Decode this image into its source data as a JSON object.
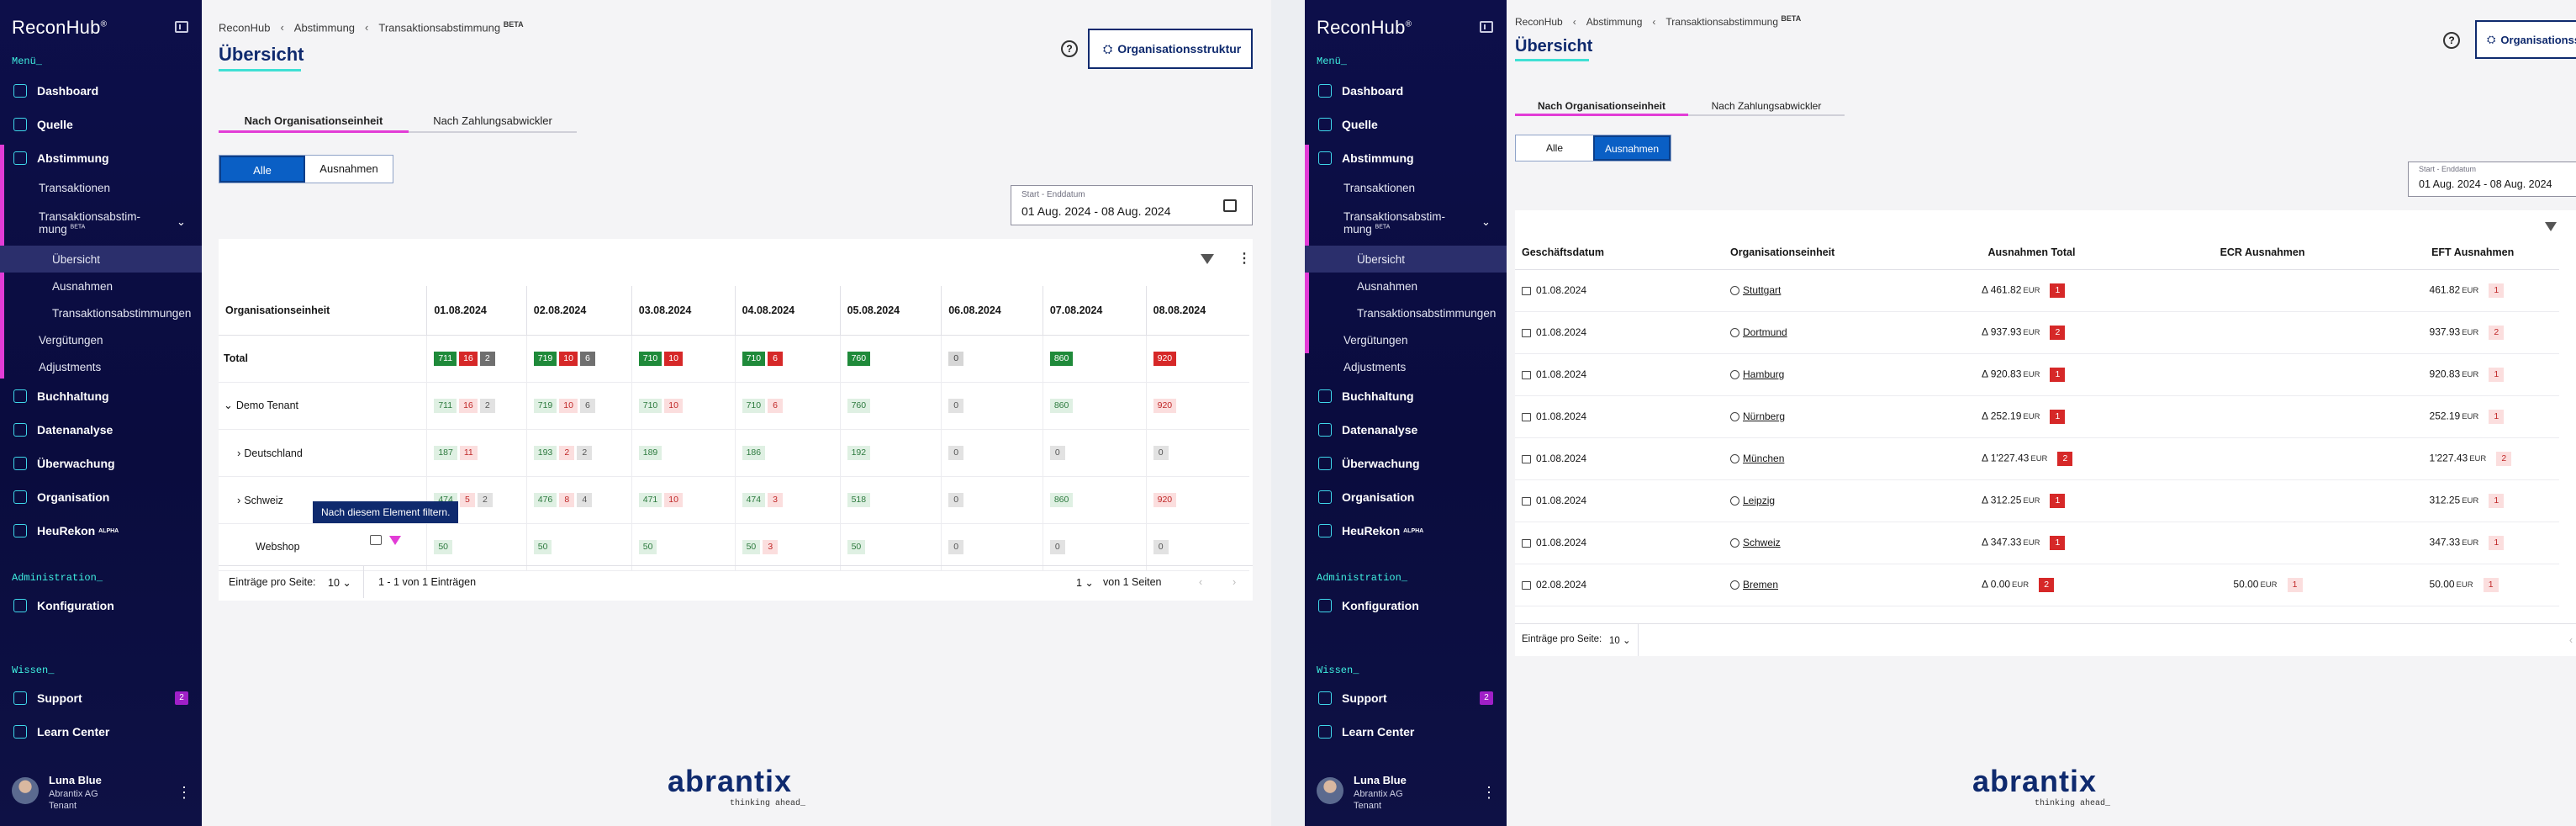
{
  "brand": "ReconHub",
  "brand_mark": "®",
  "sidebar": {
    "section_menu": "Menü_",
    "section_admin": "Administration_",
    "section_wissen": "Wissen_",
    "items": {
      "dashboard": "Dashboard",
      "quelle": "Quelle",
      "abstimmung": "Abstimmung",
      "transaktionen": "Transaktionen",
      "transaktionsabstimmung": "Transaktionsabstim-",
      "transaktionsabstimmung2": "mung",
      "beta": "BETA",
      "uebersicht": "Übersicht",
      "ausnahmen": "Ausnahmen",
      "transaktionsabstimmungen": "Transaktionsabstimmungen",
      "verguetungen": "Vergütungen",
      "adjustments": "Adjustments",
      "buchhaltung": "Buchhaltung",
      "datenanalyse": "Datenanalyse",
      "ueberwachung": "Überwachung",
      "organisation": "Organisation",
      "heurekon": "HeuRekon",
      "alpha": "ALPHA",
      "konfiguration": "Konfiguration",
      "support": "Support",
      "support_badge": "2",
      "learn": "Learn Center"
    },
    "user": {
      "name": "Luna Blue",
      "company": "Abrantix AG",
      "role": "Tenant",
      "menu": "⋮"
    }
  },
  "breadcrumb": {
    "b1": "ReconHub",
    "b2": "Abstimmung",
    "b3": "Transaktionsabstimmung",
    "b3_tag": "BETA",
    "sep": "‹"
  },
  "page_title": "Übersicht",
  "help": "?",
  "org_button": "Organisationsstruktur",
  "tabs": {
    "org": "Nach Organisationseinheit",
    "pay": "Nach Zahlungsabwickler"
  },
  "segment": {
    "all": "Alle",
    "exc": "Ausnahmen"
  },
  "date": {
    "label": "Start - Enddatum",
    "value": "01 Aug. 2024 - 08 Aug. 2024"
  },
  "view1": {
    "col_header": "Organisationseinheit",
    "dates": [
      "01.08.2024",
      "02.08.2024",
      "03.08.2024",
      "04.08.2024",
      "05.08.2024",
      "06.08.2024",
      "07.08.2024",
      "08.08.2024"
    ],
    "rows": [
      {
        "label": "Total",
        "bold": true,
        "exp": "",
        "cells": [
          [
            [
              "711",
              "g"
            ],
            [
              "16",
              "r"
            ],
            [
              "2",
              "n"
            ]
          ],
          [
            [
              "719",
              "g"
            ],
            [
              "10",
              "r"
            ],
            [
              "6",
              "n"
            ]
          ],
          [
            [
              "710",
              "g"
            ],
            [
              "10",
              "r"
            ]
          ],
          [
            [
              "710",
              "g"
            ],
            [
              "6",
              "r"
            ]
          ],
          [
            [
              "760",
              "g"
            ]
          ],
          [
            [
              "0",
              "z"
            ]
          ],
          [
            [
              "860",
              "g"
            ]
          ],
          [
            [
              "920",
              "r"
            ]
          ]
        ]
      },
      {
        "label": "Demo Tenant",
        "exp": "⌄",
        "cells": [
          [
            [
              "711",
              "gl"
            ],
            [
              "16",
              "rl"
            ],
            [
              "2",
              "nl"
            ]
          ],
          [
            [
              "719",
              "gl"
            ],
            [
              "10",
              "rl"
            ],
            [
              "6",
              "nl"
            ]
          ],
          [
            [
              "710",
              "gl"
            ],
            [
              "10",
              "rl"
            ]
          ],
          [
            [
              "710",
              "gl"
            ],
            [
              "6",
              "rl"
            ]
          ],
          [
            [
              "760",
              "gl"
            ]
          ],
          [
            [
              "0",
              "nl"
            ]
          ],
          [
            [
              "860",
              "gl"
            ]
          ],
          [
            [
              "920",
              "rl"
            ]
          ]
        ]
      },
      {
        "label": "Deutschland",
        "exp": "›",
        "cells": [
          [
            [
              "187",
              "gl"
            ],
            [
              "11",
              "rl"
            ]
          ],
          [
            [
              "193",
              "gl"
            ],
            [
              "2",
              "rl"
            ],
            [
              "2",
              "nl"
            ]
          ],
          [
            [
              "189",
              "gl"
            ]
          ],
          [
            [
              "186",
              "gl"
            ]
          ],
          [
            [
              "192",
              "gl"
            ]
          ],
          [
            [
              "0",
              "nl"
            ]
          ],
          [
            [
              "0",
              "nl"
            ]
          ],
          [
            [
              "0",
              "nl"
            ]
          ]
        ]
      },
      {
        "label": "Schweiz",
        "exp": "›",
        "cells": [
          [
            [
              "474",
              "gl"
            ],
            [
              "5",
              "rl"
            ],
            [
              "2",
              "nl"
            ]
          ],
          [
            [
              "476",
              "gl"
            ],
            [
              "8",
              "rl"
            ],
            [
              "4",
              "nl"
            ]
          ],
          [
            [
              "471",
              "gl"
            ],
            [
              "10",
              "rl"
            ]
          ],
          [
            [
              "474",
              "gl"
            ],
            [
              "3",
              "rl"
            ]
          ],
          [
            [
              "518",
              "gl"
            ]
          ],
          [
            [
              "0",
              "nl"
            ]
          ],
          [
            [
              "860",
              "gl"
            ]
          ],
          [
            [
              "920",
              "rl"
            ]
          ]
        ]
      },
      {
        "label": "Webshop",
        "exp": "",
        "cells": [
          [
            [
              "50",
              "gl"
            ]
          ],
          [
            [
              "50",
              "gl"
            ]
          ],
          [
            [
              "50",
              "gl"
            ]
          ],
          [
            [
              "50",
              "gl"
            ],
            [
              "3",
              "rl"
            ]
          ],
          [
            [
              "50",
              "gl"
            ]
          ],
          [
            [
              "0",
              "nl"
            ]
          ],
          [
            [
              "0",
              "nl"
            ]
          ],
          [
            [
              "0",
              "nl"
            ]
          ]
        ]
      }
    ],
    "tooltip": "Nach diesem Element filtern.",
    "pager": {
      "per_page": "Einträge pro Seite:",
      "size": "10",
      "range": "1 - 1 von 1 Einträgen",
      "page": "1",
      "of": "von 1 Seiten"
    }
  },
  "view2": {
    "headers": {
      "date": "Geschäftsdatum",
      "org": "Organisationseinheit",
      "total": "Ausnahmen Total",
      "ecr": "ECR Ausnahmen",
      "eft": "EFT Ausnahmen"
    },
    "rows": [
      {
        "date": "01.08.2024",
        "org": "Stuttgart",
        "total": "Δ 461.82",
        "tc": "1",
        "ecr": "",
        "ec": "",
        "eft": "461.82",
        "fc": "1"
      },
      {
        "date": "01.08.2024",
        "org": "Dortmund",
        "total": "Δ 937.93",
        "tc": "2",
        "ecr": "",
        "ec": "",
        "eft": "937.93",
        "fc": "2"
      },
      {
        "date": "01.08.2024",
        "org": "Hamburg",
        "total": "Δ 920.83",
        "tc": "1",
        "ecr": "",
        "ec": "",
        "eft": "920.83",
        "fc": "1"
      },
      {
        "date": "01.08.2024",
        "org": "Nürnberg",
        "total": "Δ 252.19",
        "tc": "1",
        "ecr": "",
        "ec": "",
        "eft": "252.19",
        "fc": "1"
      },
      {
        "date": "01.08.2024",
        "org": "München",
        "total": "Δ 1'227.43",
        "tc": "2",
        "ecr": "",
        "ec": "",
        "eft": "1'227.43",
        "fc": "2"
      },
      {
        "date": "01.08.2024",
        "org": "Leipzig",
        "total": "Δ 312.25",
        "tc": "1",
        "ecr": "",
        "ec": "",
        "eft": "312.25",
        "fc": "1"
      },
      {
        "date": "01.08.2024",
        "org": "Schweiz",
        "total": "Δ 347.33",
        "tc": "1",
        "ecr": "",
        "ec": "",
        "eft": "347.33",
        "fc": "1"
      },
      {
        "date": "02.08.2024",
        "org": "Bremen",
        "total": "Δ 0.00",
        "tc": "2",
        "ecr": "50.00",
        "ec": "1",
        "eft": "50.00",
        "fc": "1"
      }
    ],
    "currency": "EUR",
    "pager": {
      "per_page": "Einträge pro Seite:",
      "size": "10"
    }
  },
  "footer_logo": "abrantix",
  "footer_tagline": "thinking ahead_",
  "colors": {
    "navy": "#0f2a6e",
    "accent_pink": "#e23cd6",
    "accent_teal": "#3fe0d4",
    "green": "#1f8a3a",
    "red": "#d62828"
  }
}
